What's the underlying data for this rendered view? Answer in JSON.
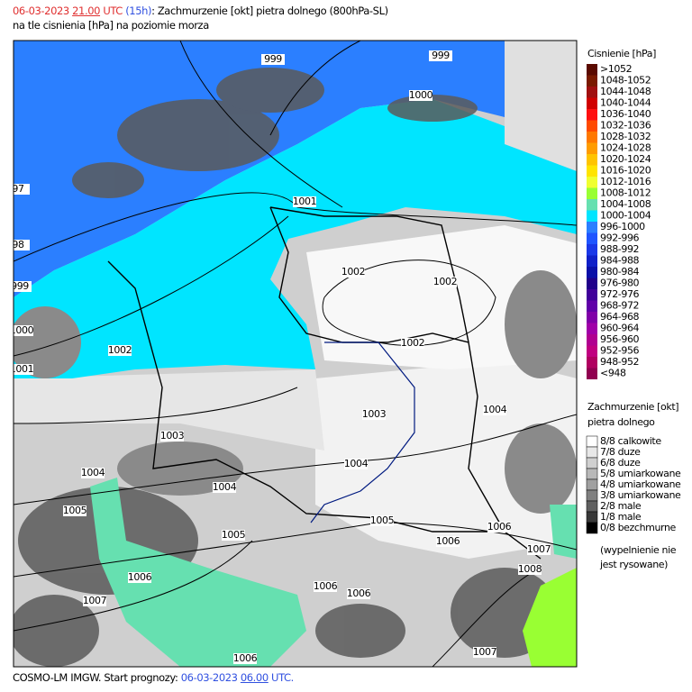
{
  "header": {
    "date": "06-03-2023",
    "hour": "21.00",
    "zone": "UTC",
    "lead": "(15h)",
    "title": ": Zachmurzenie [okt] pietra dolnego (800hPa-SL)",
    "subtitle": "na tle cisnienia [hPa] na poziomie morza"
  },
  "footer": {
    "source": "COSMO-LM IMGW. Start prognozy:",
    "date": "06-03-2023",
    "hour": "06.00",
    "zone": "UTC."
  },
  "pressure_legend": {
    "title": "Cisnienie [hPa]",
    "items": [
      {
        "label": ">1052",
        "color": "#5a0a00"
      },
      {
        "label": "1048-1052",
        "color": "#7a1a00"
      },
      {
        "label": "1044-1048",
        "color": "#a01010"
      },
      {
        "label": "1040-1044",
        "color": "#d00000"
      },
      {
        "label": "1036-1040",
        "color": "#ff1010"
      },
      {
        "label": "1032-1036",
        "color": "#ff4a00"
      },
      {
        "label": "1028-1032",
        "color": "#ff7800"
      },
      {
        "label": "1024-1028",
        "color": "#ff9c00"
      },
      {
        "label": "1020-1024",
        "color": "#ffc400"
      },
      {
        "label": "1016-1020",
        "color": "#ffe400"
      },
      {
        "label": "1012-1016",
        "color": "#f0ff30"
      },
      {
        "label": "1008-1012",
        "color": "#99ff33"
      },
      {
        "label": "1004-1008",
        "color": "#66e0b0"
      },
      {
        "label": "1000-1004",
        "color": "#00e5ff"
      },
      {
        "label": "996-1000",
        "color": "#2b7fff"
      },
      {
        "label": "992-996",
        "color": "#1f55ff"
      },
      {
        "label": "988-992",
        "color": "#1a38e8"
      },
      {
        "label": "984-988",
        "color": "#1020c8"
      },
      {
        "label": "980-984",
        "color": "#0a10a8"
      },
      {
        "label": "976-980",
        "color": "#20008a"
      },
      {
        "label": "972-976",
        "color": "#40009a"
      },
      {
        "label": "968-972",
        "color": "#6000a8"
      },
      {
        "label": "964-968",
        "color": "#8000a8"
      },
      {
        "label": "960-964",
        "color": "#a000a8"
      },
      {
        "label": "956-960",
        "color": "#b00090"
      },
      {
        "label": "952-956",
        "color": "#c00080"
      },
      {
        "label": "948-952",
        "color": "#b00060"
      },
      {
        "label": "<948",
        "color": "#900050"
      }
    ]
  },
  "cloud_legend": {
    "title": "Zachmurzenie [okt]",
    "subtitle": "pietra dolnego",
    "items": [
      {
        "label": "8/8 calkowite",
        "color": "#ffffff"
      },
      {
        "label": "7/8 duze",
        "color": "#e8e8e8"
      },
      {
        "label": "6/8 duze",
        "color": "#d0d0d0"
      },
      {
        "label": "5/8 umiarkowane",
        "color": "#b8b8b8"
      },
      {
        "label": "4/8 umiarkowane",
        "color": "#a0a0a0"
      },
      {
        "label": "3/8 umiarkowane",
        "color": "#808080"
      },
      {
        "label": "2/8 male",
        "color": "#606060"
      },
      {
        "label": "1/8 male",
        "color": "#383838"
      },
      {
        "label": "0/8 bezchmurne",
        "color": "#000000"
      }
    ],
    "note": [
      "(wypelnienie nie",
      "jest rysowane)"
    ]
  },
  "isobar_labels": [
    "999",
    "999",
    "1000",
    "97",
    "98",
    "999",
    "1000",
    "1001",
    "1001",
    "1002",
    "1002",
    "1002",
    "1002",
    "1003",
    "1003",
    "1004",
    "1004",
    "1004",
    "1004",
    "1005",
    "1005",
    "1005",
    "1006",
    "1006",
    "1006",
    "1006",
    "1006",
    "1007",
    "1008",
    "1007",
    "1007",
    "1006"
  ]
}
